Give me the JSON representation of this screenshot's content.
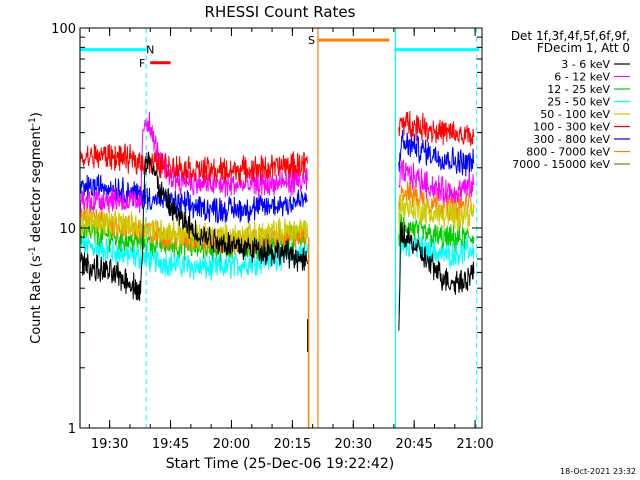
{
  "chart_data": {
    "type": "line",
    "title": "RHESSI Count Rates",
    "xlabel": "Start Time (25-Dec-06 19:22:42)",
    "ylabel_main": "Count Rate (s",
    "ylabel_sup1": "-1",
    "ylabel_mid": " detector segment",
    "ylabel_sup2": "-1",
    "ylabel_end": ")",
    "yscale": "log",
    "ylim": [
      1,
      100
    ],
    "xlim_minutes": [
      0,
      99
    ],
    "x_ticks": [
      {
        "label": "19:30",
        "minute": 7.3
      },
      {
        "label": "19:45",
        "minute": 22.3
      },
      {
        "label": "20:00",
        "minute": 37.3
      },
      {
        "label": "20:15",
        "minute": 52.3
      },
      {
        "label": "20:30",
        "minute": 67.3
      },
      {
        "label": "20:45",
        "minute": 82.3
      },
      {
        "label": "21:00",
        "minute": 97.3
      }
    ],
    "y_ticks": [
      {
        "label": "1",
        "value": 1
      },
      {
        "label": "10",
        "value": 10
      },
      {
        "label": "100",
        "value": 100
      }
    ],
    "legend_header": [
      "Det 1f,3f,4f,5f,6f,9f,",
      "FDecim 1, Att 0"
    ],
    "series": [
      {
        "name": "3 - 6 keV",
        "color": "#000000",
        "segments": [
          [
            [
              0,
              6.8
            ],
            [
              3,
              6.3
            ],
            [
              6,
              6.1
            ],
            [
              9,
              5.8
            ],
            [
              12,
              5.4
            ],
            [
              14,
              5.0
            ],
            [
              15,
              4.9
            ],
            [
              15.5,
              9
            ],
            [
              16,
              20
            ],
            [
              17,
              23
            ],
            [
              18,
              20
            ],
            [
              19,
              17
            ],
            [
              20,
              15
            ],
            [
              22,
              13
            ],
            [
              24,
              11.5
            ],
            [
              26,
              10.5
            ],
            [
              28,
              9.7
            ],
            [
              30,
              9.2
            ],
            [
              34,
              8.6
            ],
            [
              38,
              8.2
            ],
            [
              42,
              7.9
            ],
            [
              46,
              7.7
            ],
            [
              50,
              7.5
            ],
            [
              52,
              7.4
            ],
            [
              54,
              7.0
            ],
            [
              56,
              6.6
            ]
          ],
          [
            [
              78.5,
              3.0
            ],
            [
              79,
              9.5
            ],
            [
              81,
              8.8
            ],
            [
              83,
              7.8
            ],
            [
              85,
              7.0
            ],
            [
              87,
              6.3
            ],
            [
              89,
              5.8
            ],
            [
              91,
              5.4
            ],
            [
              93,
              5.4
            ],
            [
              95,
              5.6
            ],
            [
              97,
              5.9
            ]
          ]
        ]
      },
      {
        "name": "6 - 12 keV",
        "color": "#ff00ff",
        "segments": [
          [
            [
              0,
              13.5
            ],
            [
              3,
              13.8
            ],
            [
              6,
              14.0
            ],
            [
              9,
              14.0
            ],
            [
              12,
              13.5
            ],
            [
              15,
              13.2
            ],
            [
              15.5,
              30
            ],
            [
              16,
              36
            ],
            [
              17,
              33
            ],
            [
              18,
              28
            ],
            [
              19,
              24
            ],
            [
              20,
              21
            ],
            [
              22,
              18.5
            ],
            [
              24,
              17.5
            ],
            [
              28,
              16.9
            ],
            [
              32,
              16.5
            ],
            [
              36,
              16.4
            ],
            [
              40,
              16.4
            ],
            [
              44,
              16.5
            ],
            [
              48,
              16.6
            ],
            [
              52,
              17.0
            ],
            [
              56,
              17.2
            ]
          ],
          [
            [
              78.5,
              15
            ],
            [
              79,
              19
            ],
            [
              81,
              18.5
            ],
            [
              83,
              17.6
            ],
            [
              85,
              16.8
            ],
            [
              87,
              16.0
            ],
            [
              89,
              15.4
            ],
            [
              91,
              15.2
            ],
            [
              93,
              15.3
            ],
            [
              95,
              15.7
            ],
            [
              97,
              16.4
            ]
          ]
        ]
      },
      {
        "name": "12 - 25 keV",
        "color": "#00cc00",
        "segments": [
          [
            [
              0,
              9.6
            ],
            [
              4,
              9.4
            ],
            [
              8,
              9.0
            ],
            [
              12,
              8.7
            ],
            [
              15,
              8.6
            ],
            [
              20,
              8.4
            ],
            [
              25,
              8.2
            ],
            [
              30,
              8.1
            ],
            [
              35,
              8.0
            ],
            [
              40,
              8.1
            ],
            [
              45,
              8.3
            ],
            [
              50,
              8.6
            ],
            [
              54,
              9.0
            ],
            [
              56,
              9.2
            ]
          ],
          [
            [
              78.5,
              9
            ],
            [
              79,
              10.2
            ],
            [
              82,
              9.9
            ],
            [
              85,
              9.4
            ],
            [
              88,
              9.0
            ],
            [
              91,
              8.8
            ],
            [
              94,
              8.9
            ],
            [
              97,
              9.0
            ]
          ]
        ]
      },
      {
        "name": "25 - 50 keV",
        "color": "#00ffff",
        "segments": [
          [
            [
              0,
              8.3
            ],
            [
              4,
              8.0
            ],
            [
              8,
              7.6
            ],
            [
              12,
              7.3
            ],
            [
              16,
              7.1
            ],
            [
              20,
              6.8
            ],
            [
              24,
              6.6
            ],
            [
              28,
              6.4
            ],
            [
              32,
              6.3
            ],
            [
              36,
              6.4
            ],
            [
              40,
              6.6
            ],
            [
              44,
              6.9
            ],
            [
              48,
              7.2
            ],
            [
              52,
              7.4
            ],
            [
              56,
              7.6
            ]
          ],
          [
            [
              78.5,
              3.5
            ],
            [
              79,
              8.5
            ],
            [
              82,
              8.2
            ],
            [
              85,
              7.8
            ],
            [
              88,
              7.5
            ],
            [
              91,
              7.4
            ],
            [
              94,
              7.6
            ],
            [
              97,
              7.9
            ]
          ]
        ]
      },
      {
        "name": "50 - 100 keV",
        "color": "#cccc00",
        "segments": [
          [
            [
              0,
              10.5
            ],
            [
              4,
              10.8
            ],
            [
              8,
              10.6
            ],
            [
              12,
              10.3
            ],
            [
              16,
              10.0
            ],
            [
              20,
              9.7
            ],
            [
              24,
              9.4
            ],
            [
              28,
              9.2
            ],
            [
              32,
              9.1
            ],
            [
              36,
              9.0
            ],
            [
              40,
              9.1
            ],
            [
              44,
              9.3
            ],
            [
              48,
              9.5
            ],
            [
              52,
              9.8
            ],
            [
              56,
              10.0
            ]
          ],
          [
            [
              78.5,
              11
            ],
            [
              79,
              13
            ],
            [
              82,
              12.5
            ],
            [
              85,
              12.0
            ],
            [
              88,
              11.6
            ],
            [
              91,
              11.4
            ],
            [
              94,
              11.6
            ],
            [
              97,
              11.9
            ]
          ]
        ]
      },
      {
        "name": "100 - 300 keV",
        "color": "#ff0000",
        "segments": [
          [
            [
              0,
              22
            ],
            [
              3,
              22.8
            ],
            [
              6,
              23
            ],
            [
              9,
              22.6
            ],
            [
              12,
              22
            ],
            [
              15,
              21.5
            ],
            [
              18,
              21
            ],
            [
              22,
              20.3
            ],
            [
              26,
              19.8
            ],
            [
              30,
              19.4
            ],
            [
              34,
              19.3
            ],
            [
              38,
              19.4
            ],
            [
              42,
              19.6
            ],
            [
              46,
              19.9
            ],
            [
              50,
              20.3
            ],
            [
              54,
              20.7
            ],
            [
              56,
              21
            ]
          ],
          [
            [
              78.5,
              30
            ],
            [
              79,
              34
            ],
            [
              82,
              33
            ],
            [
              85,
              31.8
            ],
            [
              88,
              30.6
            ],
            [
              91,
              29.6
            ],
            [
              94,
              28.9
            ],
            [
              97,
              28.5
            ]
          ]
        ]
      },
      {
        "name": "300 - 800 keV",
        "color": "#0000ff",
        "segments": [
          [
            [
              0,
              15.5
            ],
            [
              3,
              16
            ],
            [
              6,
              16.2
            ],
            [
              9,
              15.8
            ],
            [
              12,
              15.2
            ],
            [
              15,
              14.6
            ],
            [
              18,
              14.0
            ],
            [
              22,
              13.4
            ],
            [
              26,
              13.0
            ],
            [
              30,
              12.6
            ],
            [
              34,
              12.4
            ],
            [
              38,
              12.4
            ],
            [
              42,
              12.5
            ],
            [
              46,
              12.8
            ],
            [
              50,
              13.2
            ],
            [
              54,
              13.6
            ],
            [
              56,
              13.8
            ]
          ],
          [
            [
              78.5,
              20
            ],
            [
              79,
              26.5
            ],
            [
              82,
              25.6
            ],
            [
              85,
              24.2
            ],
            [
              88,
              23
            ],
            [
              91,
              22
            ],
            [
              94,
              21.4
            ],
            [
              97,
              21
            ]
          ]
        ]
      },
      {
        "name": "800 - 7000 keV",
        "color": "#ff8000",
        "segments": [
          [
            [
              0,
              11.5
            ],
            [
              3,
              11.2
            ],
            [
              6,
              10.8
            ],
            [
              9,
              10.4
            ],
            [
              12,
              10.0
            ],
            [
              15,
              9.7
            ],
            [
              18,
              9.4
            ],
            [
              22,
              9.1
            ],
            [
              26,
              8.8
            ],
            [
              30,
              8.6
            ],
            [
              34,
              8.5
            ],
            [
              38,
              8.5
            ],
            [
              42,
              8.6
            ],
            [
              46,
              8.7
            ],
            [
              50,
              8.9
            ],
            [
              54,
              9.1
            ],
            [
              56,
              9.2
            ]
          ],
          [
            [
              78.5,
              14
            ],
            [
              79,
              15.5
            ],
            [
              82,
              14.5
            ],
            [
              85,
              13.7
            ],
            [
              88,
              13.2
            ],
            [
              91,
              12.9
            ],
            [
              94,
              12.9
            ],
            [
              97,
              13.2
            ]
          ]
        ]
      },
      {
        "name": "7000 - 15000 keV",
        "color": "#808000",
        "segments": []
      }
    ],
    "attenuator_drop": {
      "color": "#ff8000",
      "minute_start": 56.3,
      "minute_end": 57,
      "low": 0.4
    },
    "state_bars": [
      {
        "label": "N",
        "color": "#00ffff",
        "minute_start": 0,
        "minute_end": 16.3,
        "value": 78,
        "label_minute": 17.3
      },
      {
        "label": "",
        "color": "#00ffff",
        "minute_start": 77.7,
        "minute_end": 98.3,
        "value": 78,
        "label_minute": null
      },
      {
        "label": "F",
        "color": "#ff0000",
        "minute_start": 17.3,
        "minute_end": 22.3,
        "value": 67,
        "label_minute": 15.3
      },
      {
        "label": "S",
        "color": "#ff8000",
        "minute_start": 58.6,
        "minute_end": 76.2,
        "value": 87,
        "label_minute": 57.0
      }
    ],
    "vlines_dashed": {
      "color": "#00ffff",
      "minutes": [
        16.3,
        97.7
      ]
    },
    "vlines_solid": [
      {
        "color": "#00ffff",
        "minute": 0
      },
      {
        "color": "#00ffff",
        "minute": 77.7
      },
      {
        "color": "#ff8000",
        "minute": 58.6
      }
    ]
  },
  "footer": {
    "timestamp": "18-Oct-2021 23:32"
  }
}
